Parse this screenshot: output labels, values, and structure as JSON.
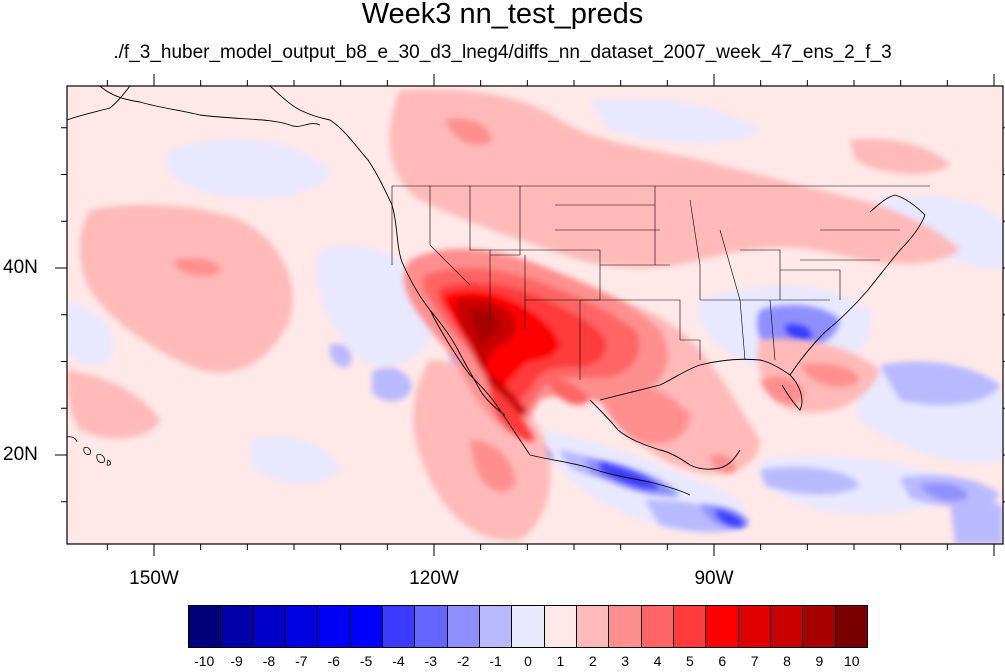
{
  "title": "Week3 nn_test_preds",
  "subtitle": "./f_3_huber_model_output_b8_e_30_d3_lneg4/diffs_nn_dataset_2007_week_47_ens_2_f_3",
  "lon_labels": [
    "150W",
    "120W",
    "90W"
  ],
  "lat_labels": [
    "40N",
    "20N"
  ],
  "colorbar": {
    "labels": [
      "-10",
      "-9",
      "-8",
      "-7",
      "-6",
      "-5",
      "-4",
      "-3",
      "-2",
      "-1",
      "0",
      "1",
      "2",
      "3",
      "4",
      "5",
      "6",
      "7",
      "8",
      "9",
      "10"
    ],
    "colors": [
      "#00007a",
      "#0000a8",
      "#0000c8",
      "#0000e0",
      "#0000f5",
      "#0000ff",
      "#3b3bff",
      "#6565ff",
      "#8f8fff",
      "#b9b9ff",
      "#e8e8ff",
      "#ffe8e8",
      "#ffb9b9",
      "#ff8f8f",
      "#ff6565",
      "#ff3b3b",
      "#ff0000",
      "#e00000",
      "#c80000",
      "#a80000",
      "#7a0000"
    ]
  }
}
